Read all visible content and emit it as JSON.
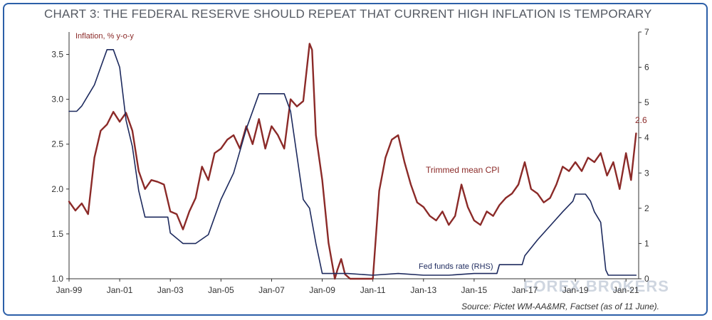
{
  "title": "CHART 3: THE FEDERAL RESERVE SHOULD REPEAT THAT CURRENT HIGH INFLATION IS TEMPORARY",
  "source": "Source: Pictet WM-AA&MR, Factset (as of 11 June).",
  "watermark": "FOREX BROKERS",
  "colors": {
    "frame": "#2c5fa8",
    "cpi": "#8b2a28",
    "ffr": "#1d2a5e",
    "axis": "#333333"
  },
  "chart_data": {
    "type": "line",
    "ylabel": "Inflation, % y-o-y",
    "left_axis": {
      "ylim": [
        1.0,
        3.75
      ],
      "ticks": [
        "1.0",
        "1.5",
        "2.0",
        "2.5",
        "3.0",
        "3.5"
      ],
      "tick_values": [
        1.0,
        1.5,
        2.0,
        2.5,
        3.0,
        3.5
      ]
    },
    "right_axis": {
      "ylim": [
        0,
        7
      ],
      "ticks": [
        "0",
        "1",
        "2",
        "3",
        "4",
        "5",
        "6",
        "7"
      ],
      "tick_values": [
        0,
        1,
        2,
        3,
        4,
        5,
        6,
        7
      ]
    },
    "x_ticks": [
      "Jan-99",
      "Jan-01",
      "Jan-03",
      "Jan-05",
      "Jan-07",
      "Jan-09",
      "Jan-11",
      "Jan-13",
      "Jan-15",
      "Jan-17",
      "Jan-19",
      "Jan-21"
    ],
    "x_tick_values": [
      1999,
      2001,
      2003,
      2005,
      2007,
      2009,
      2011,
      2013,
      2015,
      2017,
      2019,
      2021
    ],
    "xlim": [
      1999,
      2021.5
    ],
    "grid": false,
    "annotations": {
      "cpi_label": "Trimmed mean CPI",
      "ffr_label": "Fed funds rate (RHS)",
      "last_value": "2.6"
    },
    "series": [
      {
        "name": "Trimmed mean CPI",
        "axis": "left",
        "x": [
          1999.0,
          1999.25,
          1999.5,
          1999.75,
          2000.0,
          2000.25,
          2000.5,
          2000.75,
          2001.0,
          2001.25,
          2001.5,
          2001.75,
          2002.0,
          2002.25,
          2002.5,
          2002.75,
          2003.0,
          2003.25,
          2003.5,
          2003.75,
          2004.0,
          2004.25,
          2004.5,
          2004.75,
          2005.0,
          2005.25,
          2005.5,
          2005.75,
          2006.0,
          2006.25,
          2006.5,
          2006.75,
          2007.0,
          2007.25,
          2007.5,
          2007.75,
          2008.0,
          2008.25,
          2008.5,
          2008.6,
          2008.75,
          2009.0,
          2009.25,
          2009.5,
          2009.6,
          2009.75,
          2009.9,
          2010.1,
          2010.3,
          2010.5,
          2010.75,
          2011.0,
          2011.25,
          2011.5,
          2011.75,
          2012.0,
          2012.25,
          2012.5,
          2012.75,
          2013.0,
          2013.25,
          2013.5,
          2013.75,
          2014.0,
          2014.25,
          2014.5,
          2014.75,
          2015.0,
          2015.25,
          2015.5,
          2015.75,
          2016.0,
          2016.25,
          2016.5,
          2016.75,
          2017.0,
          2017.25,
          2017.5,
          2017.75,
          2018.0,
          2018.25,
          2018.5,
          2018.75,
          2019.0,
          2019.25,
          2019.5,
          2019.75,
          2020.0,
          2020.25,
          2020.5,
          2020.75,
          2021.0,
          2021.2,
          2021.4
        ],
        "values": [
          1.86,
          1.76,
          1.84,
          1.72,
          2.35,
          2.65,
          2.72,
          2.86,
          2.75,
          2.85,
          2.65,
          2.2,
          2.0,
          2.1,
          2.08,
          2.05,
          1.75,
          1.72,
          1.55,
          1.75,
          1.9,
          2.25,
          2.1,
          2.4,
          2.45,
          2.55,
          2.6,
          2.45,
          2.7,
          2.5,
          2.78,
          2.45,
          2.7,
          2.6,
          2.45,
          3.0,
          2.92,
          2.98,
          3.62,
          3.55,
          2.6,
          2.1,
          1.4,
          1.0,
          1.1,
          1.22,
          1.05,
          1.0,
          1.0,
          1.0,
          1.0,
          1.0,
          1.98,
          2.35,
          2.55,
          2.6,
          2.3,
          2.05,
          1.85,
          1.8,
          1.7,
          1.65,
          1.75,
          1.6,
          1.7,
          2.05,
          1.8,
          1.65,
          1.6,
          1.75,
          1.7,
          1.82,
          1.9,
          1.95,
          2.05,
          2.3,
          2.0,
          1.95,
          1.85,
          1.9,
          2.05,
          2.25,
          2.2,
          2.3,
          2.2,
          2.35,
          2.3,
          2.4,
          2.15,
          2.3,
          2.0,
          2.4,
          2.1,
          2.62
        ]
      },
      {
        "name": "Fed funds rate (RHS)",
        "axis": "right",
        "x": [
          1999.0,
          1999.3,
          1999.5,
          1999.75,
          2000.0,
          2000.25,
          2000.5,
          2000.75,
          2001.0,
          2001.25,
          2001.5,
          2001.75,
          2002.0,
          2002.5,
          2002.9,
          2003.0,
          2003.5,
          2003.7,
          2004.0,
          2004.5,
          2004.75,
          2005.0,
          2005.5,
          2006.0,
          2006.5,
          2007.0,
          2007.5,
          2007.75,
          2008.0,
          2008.25,
          2008.5,
          2008.75,
          2009.0,
          2009.5,
          2010.0,
          2011.0,
          2012.0,
          2013.0,
          2014.0,
          2015.0,
          2015.9,
          2016.0,
          2016.9,
          2017.0,
          2017.5,
          2018.0,
          2018.5,
          2018.9,
          2019.0,
          2019.4,
          2019.6,
          2019.75,
          2020.0,
          2020.2,
          2020.3,
          2021.0,
          2021.4
        ],
        "values": [
          4.75,
          4.75,
          4.9,
          5.2,
          5.5,
          6.0,
          6.5,
          6.5,
          6.0,
          4.5,
          3.75,
          2.5,
          1.75,
          1.75,
          1.75,
          1.3,
          1.0,
          1.0,
          1.0,
          1.25,
          1.75,
          2.25,
          3.0,
          4.25,
          5.25,
          5.25,
          5.25,
          4.75,
          3.5,
          2.25,
          2.0,
          1.0,
          0.15,
          0.15,
          0.15,
          0.1,
          0.15,
          0.1,
          0.1,
          0.15,
          0.15,
          0.4,
          0.4,
          0.65,
          1.1,
          1.5,
          1.9,
          2.2,
          2.4,
          2.4,
          2.2,
          1.9,
          1.6,
          0.25,
          0.1,
          0.1,
          0.1
        ]
      }
    ]
  }
}
